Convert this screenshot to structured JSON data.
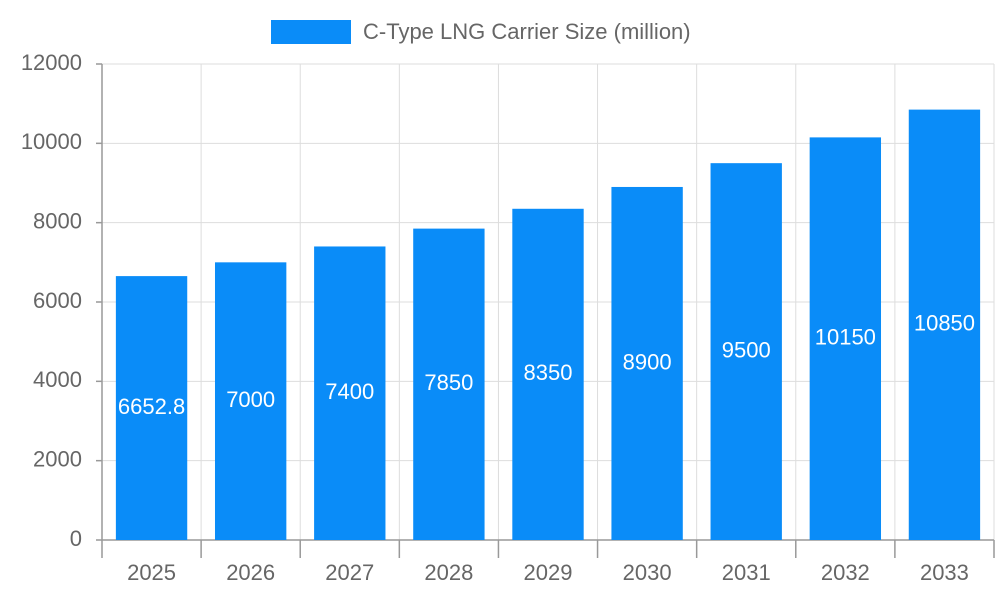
{
  "chart_data": {
    "type": "bar",
    "categories": [
      "2025",
      "2026",
      "2027",
      "2028",
      "2029",
      "2030",
      "2031",
      "2032",
      "2033"
    ],
    "series": [
      {
        "name": "C-Type LNG Carrier Size (million)",
        "color": "#0a8cf8",
        "values": [
          6652.8,
          7000,
          7400,
          7850,
          8350,
          8900,
          9500,
          10150,
          10850
        ]
      }
    ],
    "ylim": [
      0,
      12000
    ],
    "yticks": [
      0,
      2000,
      4000,
      6000,
      8000,
      10000,
      12000
    ],
    "grid": true,
    "legend": "top",
    "data_labels": true
  }
}
